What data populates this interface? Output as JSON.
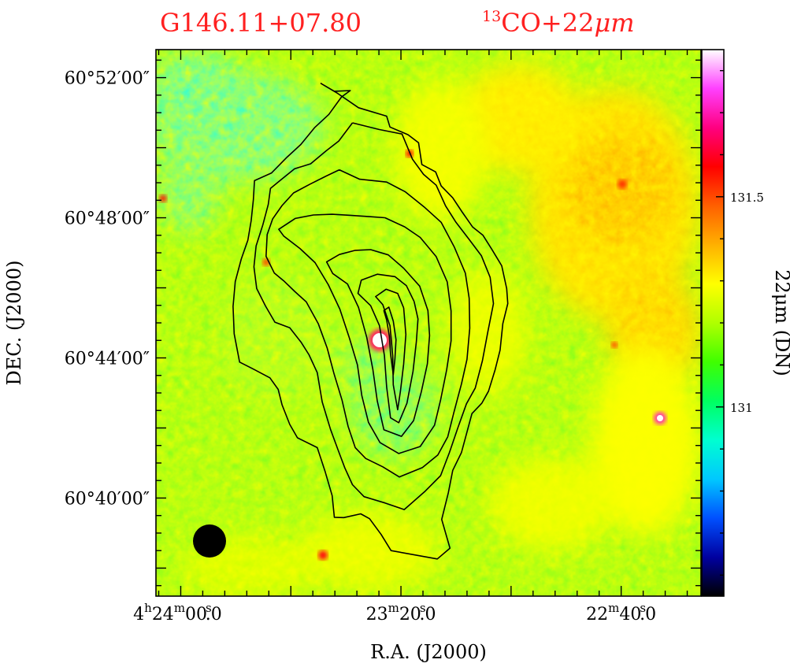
{
  "chart_data": {
    "type": "heatmap",
    "title_left": "G146.11+07.80",
    "title_right_superscript": "13",
    "title_right_text": "CO+22",
    "title_right_unit": "μm",
    "title_color": "#ff2020",
    "xlabel": "R.A. (J2000)",
    "ylabel": "DEC. (J2000)",
    "colorbar_label": "22μm (DN)",
    "x_ticks": [
      {
        "h": "4",
        "hu": "h",
        "m": "24",
        "mu": "m",
        "s": "00",
        "su": "s",
        "frac": "0",
        "value_s": 15840
      },
      {
        "h": "",
        "hu": "",
        "m": "23",
        "mu": "m",
        "s": "20",
        "su": "s",
        "frac": "0",
        "value_s": 15800
      },
      {
        "h": "",
        "hu": "",
        "m": "22",
        "mu": "m",
        "s": "40",
        "su": "s",
        "frac": "0",
        "value_s": 15760
      }
    ],
    "xlim_s": [
      15844.5,
      15745.5
    ],
    "y_ticks": [
      {
        "label": "60°52′00″",
        "value_arcmin": 52
      },
      {
        "label": "60°48′00″",
        "value_arcmin": 48
      },
      {
        "label": "60°44′00″",
        "value_arcmin": 44
      },
      {
        "label": "60°40′00″",
        "value_arcmin": 40
      }
    ],
    "ylim_arcmin": [
      37.2,
      52.8
    ],
    "colorbar": {
      "ticks": [
        {
          "label": "131",
          "value": 131.0
        },
        {
          "label": "131.5",
          "value": 131.5
        }
      ],
      "range": [
        130.55,
        131.85
      ],
      "colormap": [
        "#000000",
        "#0000a0",
        "#0050ff",
        "#00c8ff",
        "#00ffd0",
        "#00ff60",
        "#40ff00",
        "#b0ff00",
        "#ffff00",
        "#ffb000",
        "#ff6000",
        "#ff0000",
        "#ff0080",
        "#ff40ff",
        "#ffffff"
      ]
    },
    "beam_color": "#000000",
    "contours_arcmin_s": [
      [
        [
          15814.6,
          51.84
        ],
        [
          15811.5,
          51.55
        ],
        [
          15807.7,
          51.14
        ],
        [
          15802.6,
          50.9
        ],
        [
          15802.0,
          50.59
        ],
        [
          15798.7,
          50.37
        ],
        [
          15796.8,
          50.14
        ],
        [
          15796.2,
          49.52
        ],
        [
          15793.7,
          49.31
        ],
        [
          15792.7,
          48.91
        ],
        [
          15790.6,
          48.57
        ],
        [
          15788.9,
          48.17
        ],
        [
          15787.0,
          47.74
        ],
        [
          15785.1,
          47.5
        ],
        [
          15783.5,
          47.1
        ],
        [
          15781.7,
          46.63
        ],
        [
          15780.8,
          45.98
        ],
        [
          15780.6,
          45.55
        ],
        [
          15781.5,
          44.98
        ],
        [
          15782.0,
          44.22
        ],
        [
          15782.9,
          43.66
        ],
        [
          15784.1,
          43.05
        ],
        [
          15785.3,
          42.71
        ],
        [
          15787.1,
          42.41
        ],
        [
          15789.0,
          41.3
        ],
        [
          15790.6,
          40.79
        ],
        [
          15791.4,
          40.15
        ],
        [
          15792.6,
          39.39
        ],
        [
          15791.8,
          38.95
        ],
        [
          15791.1,
          38.57
        ],
        [
          15793.4,
          38.26
        ],
        [
          15801.8,
          38.5
        ],
        [
          15803.6,
          38.96
        ],
        [
          15805.7,
          39.41
        ],
        [
          15807.3,
          39.55
        ],
        [
          15810.4,
          39.44
        ],
        [
          15812.1,
          39.45
        ],
        [
          15812.5,
          40.07
        ],
        [
          15813.8,
          40.77
        ],
        [
          15815.2,
          41.44
        ],
        [
          15818.8,
          41.72
        ],
        [
          15820.2,
          42.1
        ],
        [
          15821.6,
          42.66
        ],
        [
          15822.3,
          43.1
        ],
        [
          15823.8,
          43.43
        ],
        [
          15826.8,
          43.68
        ],
        [
          15829.3,
          43.88
        ],
        [
          15830.3,
          44.69
        ],
        [
          15830.5,
          45.47
        ],
        [
          15830.1,
          46.18
        ],
        [
          15829.0,
          46.82
        ],
        [
          15827.8,
          47.36
        ],
        [
          15827.2,
          47.92
        ],
        [
          15826.8,
          48.52
        ],
        [
          15826.6,
          49.06
        ],
        [
          15823.5,
          49.28
        ],
        [
          15820.7,
          49.73
        ],
        [
          15818.2,
          50.09
        ],
        [
          15815.7,
          50.57
        ],
        [
          15813.1,
          50.95
        ],
        [
          15810.8,
          51.45
        ],
        [
          15809.2,
          51.63
        ],
        [
          15812.1,
          51.61
        ],
        [
          15814.6,
          51.84
        ]
      ],
      [
        [
          15808.8,
          50.71
        ],
        [
          15804.0,
          50.52
        ],
        [
          15799.8,
          50.39
        ],
        [
          15797.9,
          49.67
        ],
        [
          15795.9,
          49.24
        ],
        [
          15793.6,
          48.93
        ],
        [
          15791.9,
          48.34
        ],
        [
          15790.0,
          47.87
        ],
        [
          15787.6,
          47.38
        ],
        [
          15785.4,
          46.92
        ],
        [
          15783.8,
          46.3
        ],
        [
          15783.2,
          45.55
        ],
        [
          15784.2,
          44.76
        ],
        [
          15785.2,
          43.92
        ],
        [
          15786.5,
          43.14
        ],
        [
          15788.1,
          42.69
        ],
        [
          15789.6,
          42.03
        ],
        [
          15791.2,
          41.3
        ],
        [
          15792.8,
          40.64
        ],
        [
          15795.7,
          40.18
        ],
        [
          15799.4,
          39.67
        ],
        [
          15802.9,
          39.86
        ],
        [
          15806.7,
          40.04
        ],
        [
          15808.8,
          40.38
        ],
        [
          15810.2,
          40.86
        ],
        [
          15811.4,
          41.36
        ],
        [
          15812.8,
          41.96
        ],
        [
          15814.3,
          42.74
        ],
        [
          15815.2,
          43.58
        ],
        [
          15816.7,
          44.09
        ],
        [
          15818.1,
          44.44
        ],
        [
          15820.2,
          44.86
        ],
        [
          15822.9,
          45.02
        ],
        [
          15824.6,
          45.48
        ],
        [
          15826.2,
          45.98
        ],
        [
          15826.7,
          46.6
        ],
        [
          15826.3,
          47.2
        ],
        [
          15825.1,
          47.79
        ],
        [
          15824.1,
          48.38
        ],
        [
          15823.7,
          48.84
        ],
        [
          15821.9,
          49.07
        ],
        [
          15819.3,
          49.4
        ],
        [
          15816.4,
          49.54
        ],
        [
          15813.6,
          49.91
        ],
        [
          15811.3,
          50.19
        ],
        [
          15808.8,
          50.71
        ]
      ],
      [
        [
          15811.2,
          49.37
        ],
        [
          15807.5,
          49.1
        ],
        [
          15802.6,
          49.02
        ],
        [
          15799.2,
          48.74
        ],
        [
          15795.8,
          48.31
        ],
        [
          15792.7,
          47.87
        ],
        [
          15790.3,
          47.16
        ],
        [
          15788.3,
          46.42
        ],
        [
          15787.6,
          45.7
        ],
        [
          15787.5,
          44.85
        ],
        [
          15788.0,
          43.96
        ],
        [
          15789.0,
          43.26
        ],
        [
          15790.4,
          42.44
        ],
        [
          15791.5,
          41.75
        ],
        [
          15793.3,
          41.23
        ],
        [
          15796.1,
          40.87
        ],
        [
          15800.3,
          40.6
        ],
        [
          15803.3,
          40.89
        ],
        [
          15806.4,
          41.13
        ],
        [
          15808.3,
          41.44
        ],
        [
          15809.6,
          42.05
        ],
        [
          15810.7,
          42.79
        ],
        [
          15812.2,
          43.57
        ],
        [
          15813.4,
          44.28
        ],
        [
          15815.0,
          44.97
        ],
        [
          15817.2,
          45.6
        ],
        [
          15819.3,
          45.9
        ],
        [
          15821.3,
          46.2
        ],
        [
          15823.0,
          46.42
        ],
        [
          15824.5,
          46.9
        ],
        [
          15824.3,
          47.52
        ],
        [
          15823.3,
          47.97
        ],
        [
          15821.6,
          48.35
        ],
        [
          15819.5,
          48.71
        ],
        [
          15816.5,
          48.96
        ],
        [
          15813.6,
          49.19
        ],
        [
          15811.2,
          49.37
        ]
      ],
      [
        [
          15802.9,
          48.0
        ],
        [
          15799.3,
          47.74
        ],
        [
          15796.5,
          47.44
        ],
        [
          15793.6,
          46.89
        ],
        [
          15791.6,
          46.17
        ],
        [
          15790.9,
          45.34
        ],
        [
          15790.9,
          44.49
        ],
        [
          15791.7,
          43.66
        ],
        [
          15792.8,
          42.8
        ],
        [
          15793.9,
          42.08
        ],
        [
          15796.5,
          41.47
        ],
        [
          15800.4,
          41.27
        ],
        [
          15803.8,
          41.58
        ],
        [
          15805.9,
          42.16
        ],
        [
          15807.1,
          42.92
        ],
        [
          15807.9,
          43.8
        ],
        [
          15809.3,
          44.54
        ],
        [
          15811.1,
          45.39
        ],
        [
          15813.2,
          46.09
        ],
        [
          15815.6,
          46.72
        ],
        [
          15818.4,
          47.13
        ],
        [
          15821.3,
          47.48
        ],
        [
          15822.2,
          47.67
        ],
        [
          15819.2,
          47.98
        ],
        [
          15815.9,
          48.08
        ],
        [
          15812.5,
          48.1
        ],
        [
          15809.2,
          48.07
        ],
        [
          15805.5,
          48.03
        ],
        [
          15802.9,
          48.0
        ]
      ],
      [
        [
          15799.5,
          46.56
        ],
        [
          15796.6,
          46.05
        ],
        [
          15795.1,
          45.35
        ],
        [
          15794.8,
          44.64
        ],
        [
          15795.2,
          43.83
        ],
        [
          15796.3,
          43.03
        ],
        [
          15797.7,
          42.21
        ],
        [
          15799.9,
          41.76
        ],
        [
          15803.1,
          41.95
        ],
        [
          15804.3,
          42.77
        ],
        [
          15805.1,
          43.67
        ],
        [
          15806.2,
          44.58
        ],
        [
          15807.7,
          45.44
        ],
        [
          15809.7,
          46.11
        ],
        [
          15812.4,
          46.41
        ],
        [
          15813.5,
          46.74
        ],
        [
          15811.2,
          46.95
        ],
        [
          15808.3,
          47.07
        ],
        [
          15805.5,
          47.09
        ],
        [
          15802.3,
          46.94
        ],
        [
          15799.5,
          46.56
        ]
      ],
      [
        [
          15797.6,
          45.61
        ],
        [
          15796.9,
          45.11
        ],
        [
          15797.2,
          44.46
        ],
        [
          15797.8,
          43.62
        ],
        [
          15798.9,
          42.71
        ],
        [
          15800.4,
          42.15
        ],
        [
          15801.9,
          42.29
        ],
        [
          15802.6,
          43.17
        ],
        [
          15803.0,
          44.06
        ],
        [
          15803.9,
          44.92
        ],
        [
          15805.5,
          45.49
        ],
        [
          15807.8,
          45.84
        ],
        [
          15807.2,
          46.22
        ],
        [
          15804.3,
          46.39
        ],
        [
          15801.1,
          46.32
        ],
        [
          15799.0,
          46.06
        ],
        [
          15797.6,
          45.61
        ]
      ],
      [
        [
          15799.5,
          45.43
        ],
        [
          15799.1,
          44.67
        ],
        [
          15799.5,
          43.83
        ],
        [
          15800.1,
          43.05
        ],
        [
          15800.6,
          42.52
        ],
        [
          15801.4,
          43.23
        ],
        [
          15801.5,
          44.06
        ],
        [
          15802.0,
          44.92
        ],
        [
          15803.3,
          45.52
        ],
        [
          15804.6,
          45.75
        ],
        [
          15802.7,
          45.96
        ],
        [
          15800.6,
          45.84
        ],
        [
          15799.5,
          45.43
        ]
      ],
      [
        [
          15801.4,
          45.05
        ],
        [
          15800.9,
          44.52
        ],
        [
          15801.1,
          43.97
        ],
        [
          15801.4,
          43.52
        ],
        [
          15801.9,
          44.12
        ],
        [
          15802.1,
          44.61
        ],
        [
          15802.6,
          45.08
        ],
        [
          15803.1,
          45.35
        ],
        [
          15802.2,
          45.45
        ],
        [
          15801.4,
          45.05
        ]
      ]
    ]
  }
}
